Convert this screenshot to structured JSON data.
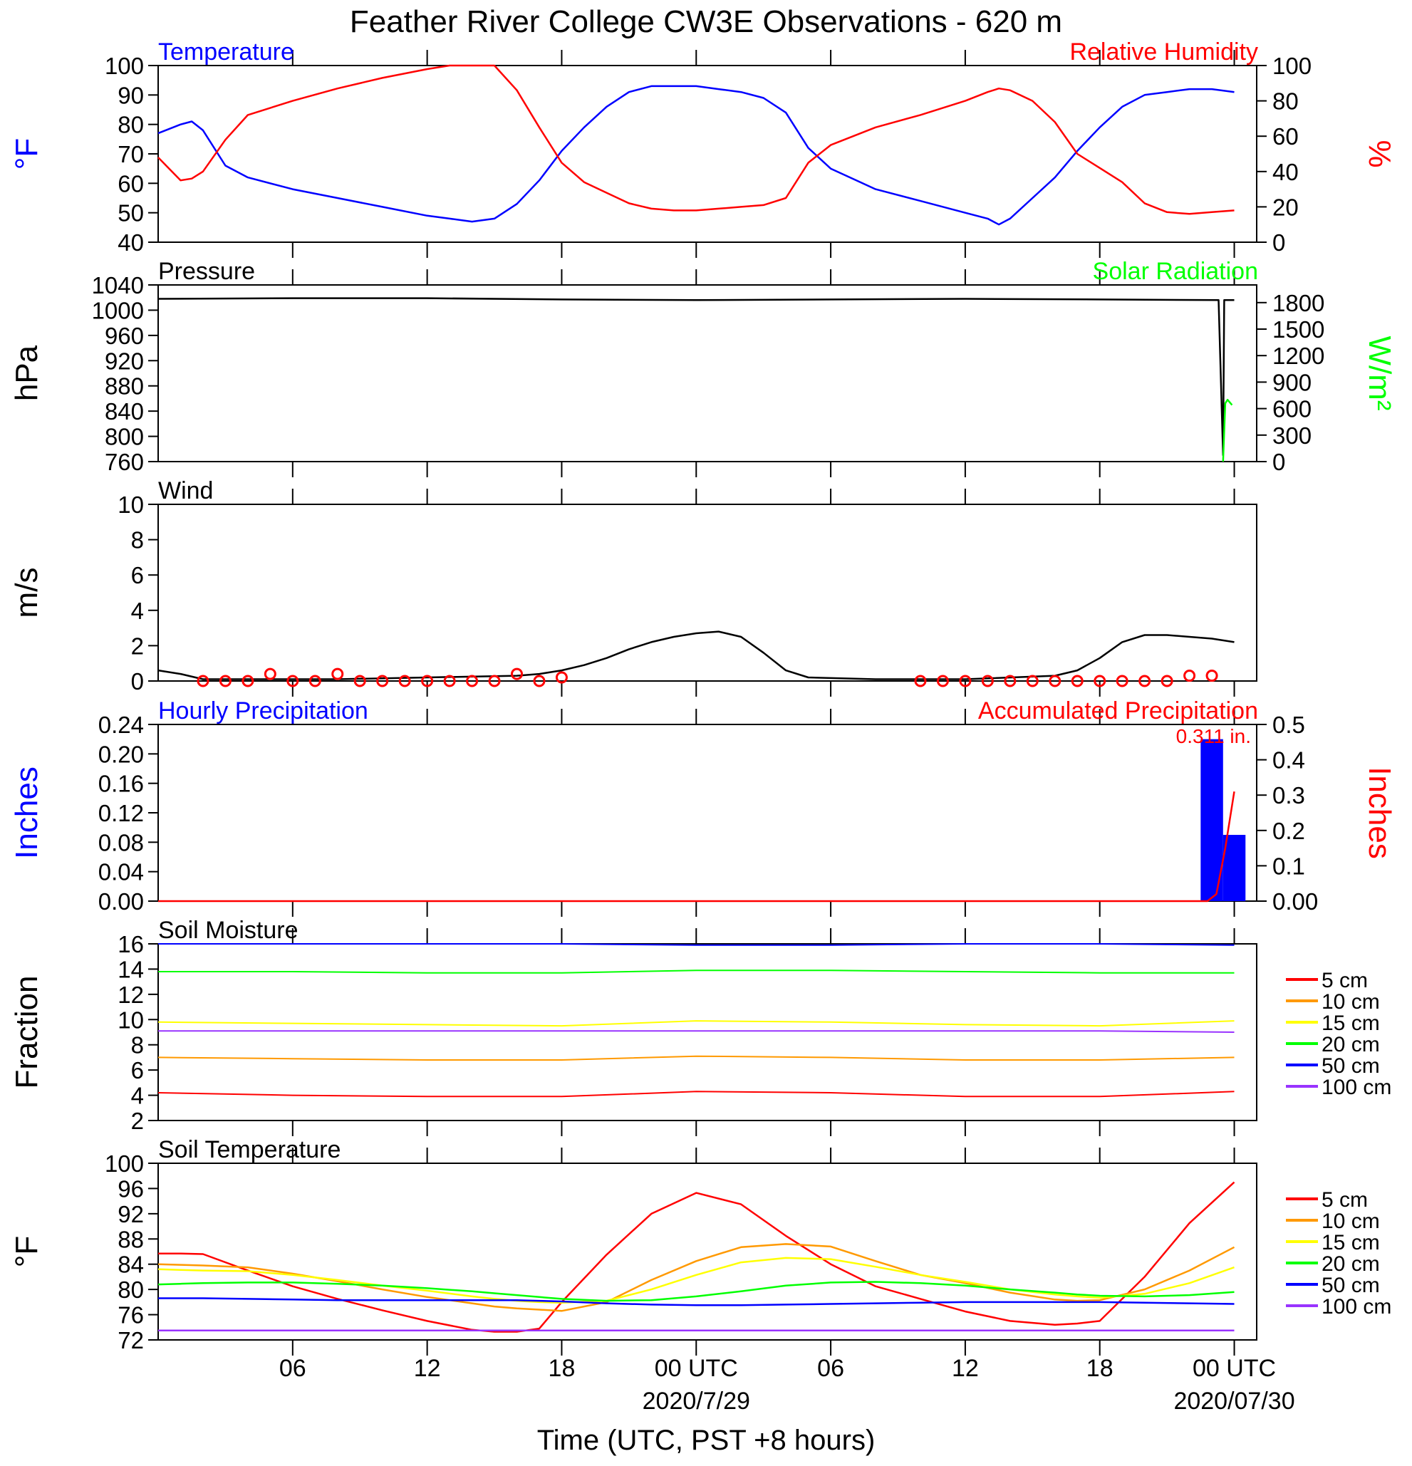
{
  "title": "Feather River College CW3E Observations - 620 m",
  "x_axis": {
    "label": "Time (UTC, PST +8 hours)",
    "ticks": [
      "06",
      "12",
      "18",
      "00 UTC",
      "06",
      "12",
      "18",
      "00 UTC"
    ],
    "dates": [
      "2020/7/29",
      "2020/07/30"
    ]
  },
  "colors": {
    "blue": "#0000ff",
    "red": "#ff0000",
    "green": "#00ff00",
    "black": "#000000",
    "orange": "#ff9900",
    "yellow": "#ffff00",
    "purple": "#9933ff"
  },
  "panels": {
    "temp_rh": {
      "title_left": "Temperature",
      "title_right": "Relative Humidity",
      "ylabel_left": "°F",
      "ylabel_right": "%",
      "left_ticks": [
        "40",
        "50",
        "60",
        "70",
        "80",
        "90",
        "100"
      ],
      "right_ticks": [
        "0",
        "20",
        "40",
        "60",
        "80",
        "100"
      ]
    },
    "pressure": {
      "title_left": "Pressure",
      "title_right": "Solar Radiation",
      "ylabel_left": "hPa",
      "ylabel_right": "W/m²",
      "left_ticks": [
        "760",
        "800",
        "840",
        "880",
        "920",
        "960",
        "1000",
        "1040"
      ],
      "right_ticks": [
        "0",
        "300",
        "600",
        "900",
        "1200",
        "1500",
        "1800"
      ]
    },
    "wind": {
      "title_left": "Wind",
      "ylabel_left": "m/s",
      "left_ticks": [
        "0",
        "2",
        "4",
        "6",
        "8",
        "10"
      ]
    },
    "precip": {
      "title_left": "Hourly Precipitation",
      "title_right": "Accumulated Precipitation",
      "ylabel_left": "Inches",
      "ylabel_right": "Inches",
      "left_ticks": [
        "0.00",
        "0.04",
        "0.08",
        "0.12",
        "0.16",
        "0.20",
        "0.24"
      ],
      "right_ticks": [
        "0.00",
        "0.1",
        "0.2",
        "0.3",
        "0.4",
        "0.5"
      ],
      "total_label": "0.311 in."
    },
    "soil_moisture": {
      "title_left": "Soil Moisture",
      "ylabel_left": "Fraction",
      "left_ticks": [
        "2",
        "4",
        "6",
        "8",
        "10",
        "12",
        "14",
        "16"
      ]
    },
    "soil_temp": {
      "title_left": "Soil Temperature",
      "ylabel_left": "°F",
      "left_ticks": [
        "72",
        "76",
        "80",
        "84",
        "88",
        "92",
        "96",
        "100"
      ]
    }
  },
  "legend_depths": [
    "5 cm",
    "10 cm",
    "15 cm",
    "20 cm",
    "50 cm",
    "100 cm"
  ],
  "chart_data": [
    {
      "type": "line",
      "panel": "temp_rh",
      "x_hours": [
        0,
        1,
        1.5,
        2,
        3,
        4,
        6,
        8,
        10,
        12,
        13,
        14,
        15,
        16,
        17,
        18,
        19,
        20,
        21,
        22,
        23,
        24,
        25,
        26,
        27,
        28,
        29,
        30,
        32,
        34,
        36,
        37,
        37.5,
        38,
        39,
        40,
        41,
        42,
        43,
        44,
        45,
        46,
        47,
        48
      ],
      "series": [
        {
          "name": "Temperature",
          "color": "blue",
          "axis": "left",
          "ylim": [
            40,
            100
          ],
          "values": [
            77,
            80,
            81,
            78,
            66,
            62,
            58,
            55,
            52,
            49,
            48,
            47,
            48,
            53,
            61,
            71,
            79,
            86,
            91,
            93,
            93,
            93,
            92,
            91,
            89,
            84,
            72,
            65,
            58,
            54,
            50,
            48,
            46,
            48,
            55,
            62,
            71,
            79,
            86,
            90,
            91,
            92,
            92,
            91
          ]
        },
        {
          "name": "Relative Humidity",
          "color": "red",
          "axis": "right",
          "ylim": [
            0,
            100
          ],
          "values": [
            48,
            35,
            36,
            40,
            58,
            72,
            80,
            87,
            93,
            98,
            100,
            100,
            100,
            86,
            65,
            45,
            34,
            28,
            22,
            19,
            18,
            18,
            19,
            20,
            21,
            25,
            45,
            55,
            65,
            72,
            80,
            85,
            87,
            86,
            80,
            68,
            50,
            42,
            34,
            22,
            17,
            16,
            17,
            18
          ]
        }
      ]
    },
    {
      "type": "line",
      "panel": "pressure",
      "x_hours": [
        0,
        6,
        12,
        18,
        24,
        30,
        36,
        42,
        47.3,
        47.5,
        47.55,
        48
      ],
      "series": [
        {
          "name": "Pressure",
          "color": "black",
          "axis": "left",
          "ylim": [
            760,
            1040
          ],
          "values": [
            1018,
            1019,
            1019,
            1017,
            1016,
            1017,
            1018,
            1017,
            1016,
            770,
            1016,
            1016
          ]
        },
        {
          "name": "Solar Radiation",
          "color": "green",
          "axis": "right",
          "ylim": [
            0,
            2000
          ],
          "x": [
            47.5,
            47.6,
            47.7,
            47.9
          ],
          "values": [
            0,
            660,
            700,
            640
          ]
        }
      ]
    },
    {
      "type": "line",
      "panel": "wind",
      "ylim": [
        0,
        10
      ],
      "x_hours": [
        0,
        1,
        2,
        4,
        8,
        12,
        16,
        17,
        18,
        19,
        20,
        21,
        22,
        23,
        24,
        25,
        26,
        27,
        28,
        29,
        32,
        36,
        40,
        41,
        42,
        43,
        44,
        45,
        46,
        47,
        48
      ],
      "series": [
        {
          "name": "Wind speed",
          "color": "black",
          "values": [
            0.6,
            0.4,
            0.1,
            0.1,
            0.1,
            0.2,
            0.3,
            0.4,
            0.6,
            0.9,
            1.3,
            1.8,
            2.2,
            2.5,
            2.7,
            2.8,
            2.5,
            1.6,
            0.6,
            0.2,
            0.1,
            0.1,
            0.3,
            0.6,
            1.3,
            2.2,
            2.6,
            2.6,
            2.5,
            2.4,
            2.2
          ]
        }
      ],
      "barb_hours": [
        2,
        3,
        4,
        5,
        6,
        7,
        8,
        9,
        10,
        11,
        12,
        13,
        14,
        15,
        16,
        17,
        18,
        34,
        35,
        36,
        37,
        38,
        39,
        40,
        41,
        42,
        43,
        44,
        45,
        46,
        47
      ],
      "barb_speeds": [
        0,
        0,
        0,
        0.4,
        0,
        0,
        0.4,
        0,
        0,
        0,
        0,
        0,
        0,
        0,
        0.4,
        0,
        0.2,
        0,
        0,
        0,
        0,
        0,
        0,
        0,
        0,
        0,
        0,
        0,
        0,
        0.3,
        0.3
      ]
    },
    {
      "type": "bar",
      "panel": "precip",
      "series": [
        {
          "name": "Hourly Precipitation",
          "color": "blue",
          "axis": "left",
          "ylim": [
            0,
            0.24
          ],
          "x": [
            47,
            48
          ],
          "values": [
            0.22,
            0.09
          ]
        },
        {
          "name": "Accumulated Precipitation",
          "color": "red",
          "axis": "right",
          "ylim": [
            0,
            0.5
          ],
          "type": "line",
          "x": [
            0,
            46.8,
            47.2,
            47.6,
            48
          ],
          "values": [
            0,
            0,
            0.02,
            0.15,
            0.31
          ]
        }
      ]
    },
    {
      "type": "line",
      "panel": "soil_moisture",
      "ylim": [
        2,
        16
      ],
      "x_hours": [
        0,
        6,
        12,
        18,
        24,
        30,
        36,
        42,
        48
      ],
      "series": [
        {
          "name": "5 cm",
          "color": "red",
          "values": [
            4.2,
            4.0,
            3.9,
            3.9,
            4.3,
            4.2,
            3.9,
            3.9,
            4.3
          ]
        },
        {
          "name": "10 cm",
          "color": "orange",
          "values": [
            7.0,
            6.9,
            6.8,
            6.8,
            7.1,
            7.0,
            6.8,
            6.8,
            7.0
          ]
        },
        {
          "name": "15 cm",
          "color": "yellow",
          "values": [
            9.8,
            9.7,
            9.6,
            9.5,
            9.9,
            9.8,
            9.6,
            9.5,
            9.9
          ]
        },
        {
          "name": "20 cm",
          "color": "green",
          "values": [
            13.8,
            13.8,
            13.7,
            13.7,
            13.9,
            13.9,
            13.8,
            13.7,
            13.7
          ]
        },
        {
          "name": "50 cm",
          "color": "blue",
          "values": [
            16.0,
            16.0,
            16.0,
            16.0,
            15.9,
            15.9,
            16.0,
            16.0,
            15.9
          ]
        },
        {
          "name": "100 cm",
          "color": "purple",
          "values": [
            9.1,
            9.1,
            9.1,
            9.1,
            9.1,
            9.1,
            9.1,
            9.1,
            9.0
          ]
        }
      ]
    },
    {
      "type": "line",
      "panel": "soil_temp",
      "ylim": [
        72,
        100
      ],
      "x_hours": [
        0,
        1,
        2,
        4,
        6,
        8,
        10,
        12,
        14,
        15,
        16,
        17,
        18,
        20,
        22,
        24,
        26,
        28,
        30,
        32,
        34,
        36,
        38,
        40,
        41,
        42,
        44,
        46,
        48
      ],
      "series": [
        {
          "name": "5 cm",
          "color": "red",
          "values": [
            85.7,
            85.7,
            85.6,
            83.0,
            80.5,
            78.5,
            76.7,
            75.0,
            73.6,
            73.3,
            73.3,
            73.8,
            78.0,
            85.5,
            92.0,
            95.3,
            93.5,
            88.5,
            84.0,
            80.5,
            78.5,
            76.5,
            75.0,
            74.4,
            74.6,
            75.0,
            82.0,
            90.5,
            97.0
          ]
        },
        {
          "name": "10 cm",
          "color": "orange",
          "values": [
            84.0,
            83.9,
            83.8,
            83.5,
            82.5,
            81.3,
            80.0,
            78.8,
            77.8,
            77.3,
            77.0,
            76.8,
            76.6,
            78.0,
            81.5,
            84.5,
            86.7,
            87.2,
            86.8,
            84.5,
            82.3,
            81.0,
            79.5,
            78.4,
            78.2,
            78.3,
            80.0,
            83.0,
            86.7
          ]
        },
        {
          "name": "15 cm",
          "color": "yellow",
          "values": [
            83.2,
            83.1,
            83.0,
            82.9,
            82.3,
            81.5,
            80.6,
            79.8,
            78.9,
            78.5,
            78.2,
            78.0,
            77.9,
            78.2,
            80.0,
            82.3,
            84.3,
            85.0,
            84.8,
            83.6,
            82.3,
            81.2,
            80.0,
            79.2,
            78.9,
            78.7,
            79.3,
            81.0,
            83.5
          ]
        },
        {
          "name": "20 cm",
          "color": "green",
          "values": [
            80.8,
            80.9,
            81.0,
            81.1,
            81.1,
            80.9,
            80.6,
            80.2,
            79.7,
            79.4,
            79.1,
            78.8,
            78.5,
            78.2,
            78.3,
            78.9,
            79.7,
            80.6,
            81.1,
            81.2,
            81.0,
            80.6,
            80.0,
            79.5,
            79.2,
            79.0,
            78.9,
            79.1,
            79.6
          ]
        },
        {
          "name": "50 cm",
          "color": "blue",
          "values": [
            78.6,
            78.6,
            78.6,
            78.5,
            78.4,
            78.3,
            78.3,
            78.3,
            78.3,
            78.3,
            78.3,
            78.2,
            78.1,
            77.8,
            77.6,
            77.5,
            77.5,
            77.6,
            77.7,
            77.8,
            77.9,
            78.0,
            78.0,
            78.0,
            78.0,
            78.0,
            77.9,
            77.8,
            77.7
          ]
        },
        {
          "name": "100 cm",
          "color": "purple",
          "values": [
            73.5,
            73.5,
            73.5,
            73.5,
            73.5,
            73.5,
            73.5,
            73.5,
            73.5,
            73.5,
            73.5,
            73.5,
            73.5,
            73.5,
            73.5,
            73.5,
            73.5,
            73.5,
            73.5,
            73.5,
            73.5,
            73.5,
            73.5,
            73.5,
            73.5,
            73.5,
            73.5,
            73.5,
            73.5
          ]
        }
      ]
    }
  ]
}
